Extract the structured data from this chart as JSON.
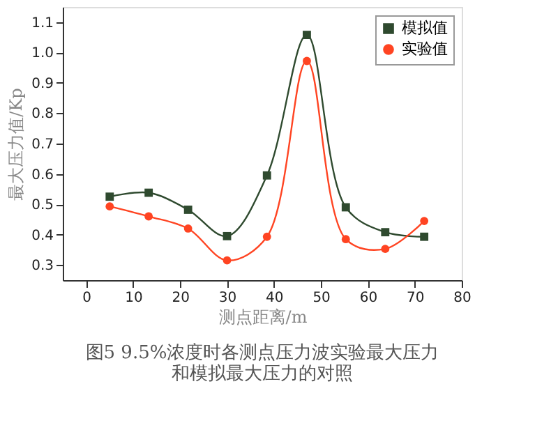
{
  "chart_data": {
    "type": "line",
    "title": "图5 9.5%浓度时各测点压力波实验最大压力和模拟最大压力的对照",
    "xlabel": "测点距离/m",
    "ylabel": "最大压力值/Kp",
    "x": [
      5,
      13.3,
      21.7,
      30,
      38.5,
      47,
      55.3,
      63.7,
      72
    ],
    "series": [
      {
        "name": "模拟值",
        "color": "#2f4a2f",
        "marker": "square",
        "values": [
          0.525,
          0.538,
          0.482,
          0.395,
          0.595,
          1.058,
          0.49,
          0.408,
          0.393
        ]
      },
      {
        "name": "实验值",
        "color": "#ff4422",
        "marker": "circle",
        "values": [
          0.493,
          0.46,
          0.42,
          0.315,
          0.393,
          0.972,
          0.385,
          0.353,
          0.445
        ]
      }
    ],
    "xlim": [
      -5,
      80
    ],
    "xticks": [
      0,
      10,
      20,
      30,
      40,
      50,
      60,
      70,
      80
    ],
    "ylim": [
      0.25,
      1.15
    ],
    "yticks": [
      0.3,
      0.4,
      0.5,
      0.6,
      0.7,
      0.8,
      0.9,
      {
        "value": 1.0,
        "label": "1.0"
      },
      1.1
    ],
    "grid": false,
    "legend": "top right",
    "line_style": "solid"
  }
}
